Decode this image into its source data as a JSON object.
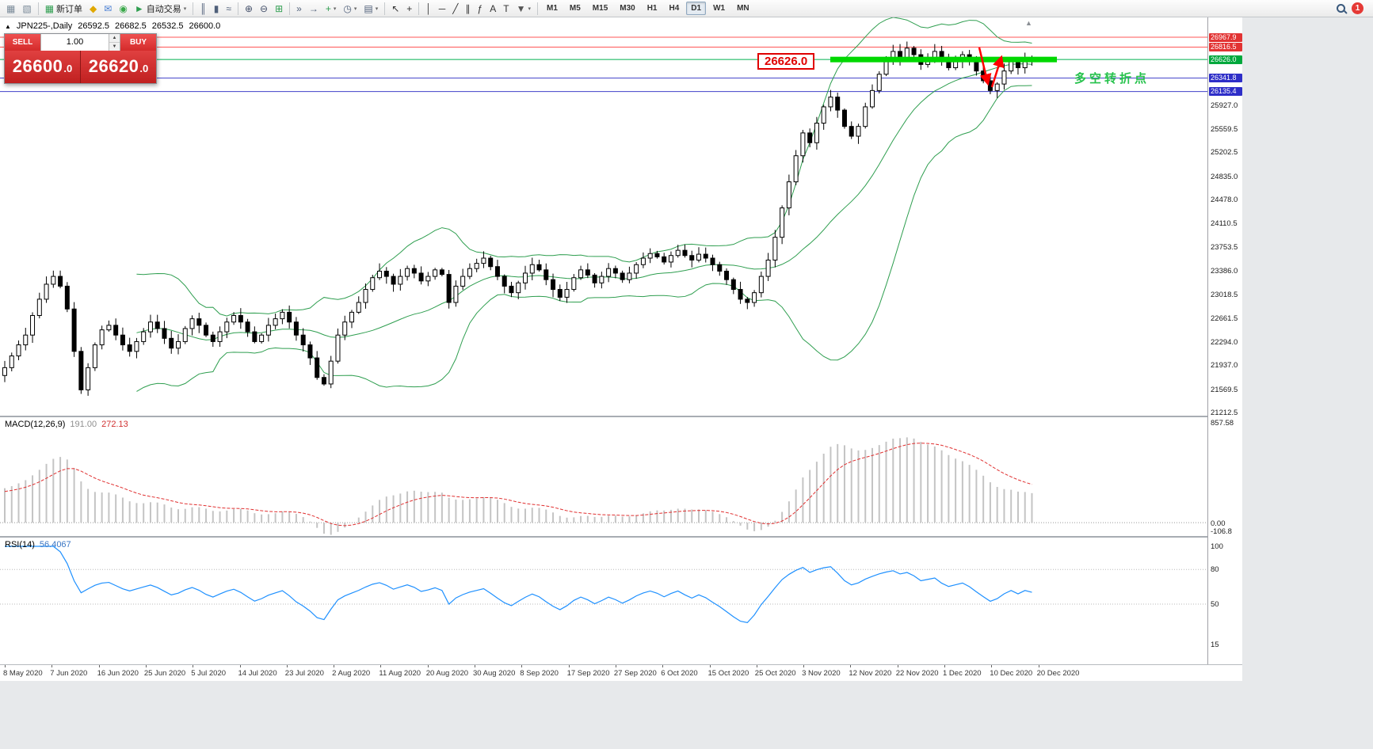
{
  "toolbar": {
    "items": [
      {
        "type": "icon",
        "name": "new-chart-icon",
        "glyph": "▦",
        "tint": "#7a8a99"
      },
      {
        "type": "icon",
        "name": "profiles-icon",
        "glyph": "▧",
        "tint": "#7a8a99"
      },
      {
        "type": "sep"
      },
      {
        "type": "button",
        "name": "new-order-button",
        "glyph": "▦",
        "tint": "#2e9e4f",
        "label": "新订单"
      },
      {
        "type": "icon",
        "name": "alerts-icon",
        "glyph": "◆",
        "tint": "#e0a800"
      },
      {
        "type": "icon",
        "name": "mailbox-icon",
        "glyph": "✉",
        "tint": "#4a7fd4"
      },
      {
        "type": "icon",
        "name": "community-icon",
        "glyph": "◉",
        "tint": "#39a849"
      },
      {
        "type": "button",
        "name": "autotrading-button",
        "glyph": "►",
        "tint": "#2e9e4f",
        "label": "自动交易",
        "caret": true
      },
      {
        "type": "sep"
      },
      {
        "type": "icon",
        "name": "bar-chart-icon",
        "glyph": "║",
        "tint": "#50607a"
      },
      {
        "type": "icon",
        "name": "candlestick-chart-icon",
        "glyph": "▮",
        "tint": "#50607a"
      },
      {
        "type": "icon",
        "name": "line-chart-icon",
        "glyph": "≈",
        "tint": "#50607a"
      },
      {
        "type": "sep"
      },
      {
        "type": "icon",
        "name": "zoom-in-icon",
        "glyph": "⊕",
        "tint": "#44506a"
      },
      {
        "type": "icon",
        "name": "zoom-out-icon",
        "glyph": "⊖",
        "tint": "#44506a"
      },
      {
        "type": "icon",
        "name": "indicators-grid-icon",
        "glyph": "⊞",
        "tint": "#2e9e4f"
      },
      {
        "type": "sep"
      },
      {
        "type": "icon",
        "name": "auto-scroll-icon",
        "glyph": "»",
        "tint": "#50607a"
      },
      {
        "type": "icon",
        "name": "chart-shift-icon",
        "glyph": "→",
        "tint": "#50607a"
      },
      {
        "type": "icon",
        "name": "add-indicator-icon",
        "glyph": "+",
        "tint": "#2e9e4f",
        "caret": true
      },
      {
        "type": "icon",
        "name": "period-clock-icon",
        "glyph": "◷",
        "tint": "#50607a",
        "caret": true
      },
      {
        "type": "icon",
        "name": "template-icon",
        "glyph": "▤",
        "tint": "#50607a",
        "caret": true
      },
      {
        "type": "sep"
      },
      {
        "type": "icon",
        "name": "cursor-icon",
        "glyph": "↖",
        "tint": "#333333"
      },
      {
        "type": "icon",
        "name": "crosshair-icon",
        "glyph": "+",
        "tint": "#333333"
      },
      {
        "type": "sep"
      },
      {
        "type": "icon",
        "name": "vertical-line-icon",
        "glyph": "│",
        "tint": "#333333"
      },
      {
        "type": "icon",
        "name": "horizontal-line-icon",
        "glyph": "─",
        "tint": "#333333"
      },
      {
        "type": "icon",
        "name": "trendline-icon",
        "glyph": "╱",
        "tint": "#333333"
      },
      {
        "type": "icon",
        "name": "channel-icon",
        "glyph": "∥",
        "tint": "#333333"
      },
      {
        "type": "icon",
        "name": "fibonacci-icon",
        "glyph": "ƒ",
        "tint": "#333333"
      },
      {
        "type": "icon",
        "name": "text-label-icon",
        "glyph": "A",
        "tint": "#333333"
      },
      {
        "type": "icon",
        "name": "text-icon",
        "glyph": "T",
        "tint": "#333333"
      },
      {
        "type": "icon",
        "name": "arrow-tools-icon",
        "glyph": "▼",
        "tint": "#555555",
        "caret": true
      },
      {
        "type": "sep"
      }
    ],
    "timeframes": {
      "items": [
        "M1",
        "M5",
        "M15",
        "M30",
        "H1",
        "H4",
        "D1",
        "W1",
        "MN"
      ],
      "active": "D1"
    },
    "notification_count": "1"
  },
  "chart_window": {
    "symbol_info": {
      "marker": "▲",
      "name_period": "JPN225-,Daily",
      "open": "26592.5",
      "high": "26682.5",
      "low": "26532.5",
      "close": "26600.0"
    },
    "trade_panel": {
      "sell_label": "SELL",
      "buy_label": "BUY",
      "volume": "1.00",
      "spinner_up": "▲",
      "spinner_down": "▼",
      "sell_price": "26600.0",
      "buy_price": "26620.0"
    }
  },
  "chart_data": {
    "type": "candlestick",
    "symbol": "JPN225-",
    "timeframe": "Daily",
    "closes": [
      21900,
      22080,
      22250,
      22400,
      22700,
      22950,
      23180,
      23300,
      23150,
      22800,
      22150,
      21560,
      21900,
      22250,
      22480,
      22550,
      22400,
      22250,
      22150,
      22300,
      22450,
      22600,
      22500,
      22350,
      22200,
      22300,
      22500,
      22650,
      22550,
      22400,
      22300,
      22450,
      22600,
      22700,
      22600,
      22450,
      22300,
      22400,
      22550,
      22650,
      22750,
      22600,
      22400,
      22250,
      22050,
      21750,
      21650,
      22000,
      22400,
      22600,
      22750,
      22900,
      23100,
      23280,
      23380,
      23300,
      23180,
      23300,
      23420,
      23350,
      23230,
      23300,
      23400,
      23330,
      22900,
      23150,
      23300,
      23420,
      23500,
      23580,
      23450,
      23300,
      23150,
      23050,
      23200,
      23350,
      23480,
      23400,
      23250,
      23100,
      22980,
      23100,
      23280,
      23400,
      23320,
      23200,
      23300,
      23420,
      23350,
      23250,
      23350,
      23480,
      23580,
      23650,
      23600,
      23520,
      23620,
      23700,
      23620,
      23550,
      23640,
      23580,
      23480,
      23380,
      23250,
      23100,
      22950,
      22900,
      23050,
      23300,
      23550,
      23900,
      24350,
      24750,
      25150,
      25500,
      25350,
      25650,
      25900,
      26050,
      25850,
      25600,
      25450,
      25600,
      25900,
      26150,
      26400,
      26600,
      26750,
      26650,
      26800,
      26700,
      26550,
      26650,
      26750,
      26600,
      26500,
      26600,
      26700,
      26600,
      26450,
      26300,
      26150,
      26250,
      26450,
      26600,
      26500,
      26650,
      26600
    ],
    "x_labels": [
      "8 May 2020",
      "7 Jun 2020",
      "16 Jun 2020",
      "25 Jun 2020",
      "5 Jul 2020",
      "14 Jul 2020",
      "23 Jul 2020",
      "2 Aug 2020",
      "11 Aug 2020",
      "20 Aug 2020",
      "30 Aug 2020",
      "8 Sep 2020",
      "17 Sep 2020",
      "27 Sep 2020",
      "6 Oct 2020",
      "15 Oct 2020",
      "25 Oct 2020",
      "3 Nov 2020",
      "12 Nov 2020",
      "22 Nov 2020",
      "1 Dec 2020",
      "10 Dec 2020",
      "20 Dec 2020"
    ],
    "y_ticks": [
      "25927.0",
      "25559.5",
      "25202.5",
      "24835.0",
      "24478.0",
      "24110.5",
      "23753.5",
      "23386.0",
      "23018.5",
      "22661.5",
      "22294.0",
      "21937.0",
      "21569.5",
      "21212.5"
    ],
    "levels": [
      {
        "text": "26967.9",
        "price": 26967.9,
        "color": "#e23333",
        "line": "#ff5555"
      },
      {
        "text": "26816.5",
        "price": 26816.5,
        "color": "#e23333",
        "line": "#ff5555"
      },
      {
        "text": "26626.0",
        "price": 26626.0,
        "color": "#00a83c",
        "line": "#00b050",
        "thick": true,
        "segment_color": "#00d800"
      },
      {
        "text": "26341.8",
        "price": 26341.8,
        "color": "#2e2ec8",
        "line": "#4040c8"
      },
      {
        "text": "26135.4",
        "price": 26135.4,
        "color": "#2e2ec8",
        "line": "#4040c8"
      }
    ],
    "indicators": {
      "bollinger": {
        "period": 20,
        "deviation": 2,
        "color": "#2e9e4f"
      },
      "macd": {
        "label": "MACD(12,26,9)",
        "value": "191.00",
        "signal": "272.13",
        "axis_max": "857.58",
        "axis_zero": "0.00",
        "axis_min": "-106.8",
        "histogram_color": "#c4c4c4",
        "signal_color": "#e03030"
      },
      "rsi": {
        "label": "RSI(14)",
        "value": "56.4067",
        "axis": [
          "100",
          "80",
          "50",
          "15"
        ],
        "levels": [
          80,
          50
        ],
        "line_color": "#1E90FF"
      }
    },
    "annotations": {
      "price_flag": {
        "text": "26626.0",
        "color": "#e00000"
      },
      "note": {
        "text": "多空转折点",
        "color": "#25c24b"
      },
      "arrow_color": "#ff0000",
      "scroll_marker": "▲"
    }
  }
}
